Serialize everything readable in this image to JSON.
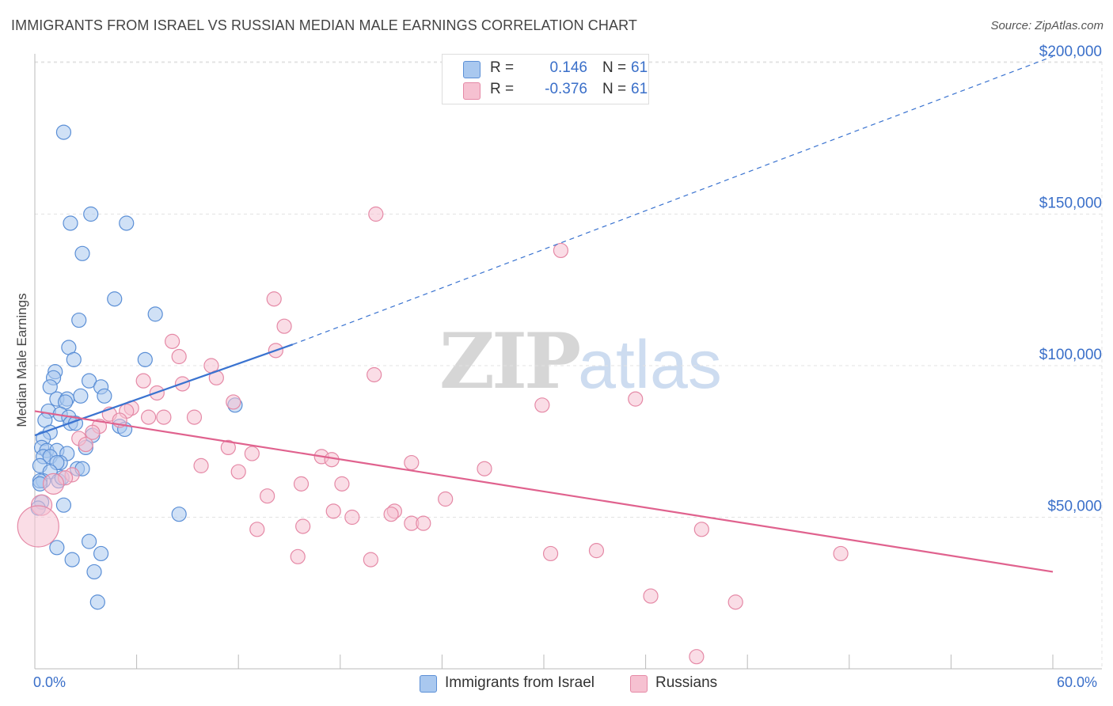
{
  "title": "IMMIGRANTS FROM ISRAEL VS RUSSIAN MEDIAN MALE EARNINGS CORRELATION CHART",
  "source": "Source: ZipAtlas.com",
  "watermark": {
    "part1": "ZIP",
    "part2": "atlas"
  },
  "colors": {
    "israel_fill": "#a9c8ef",
    "israel_stroke": "#5b8fd6",
    "israel_line": "#3a73d0",
    "russian_fill": "#f6c1d1",
    "russian_stroke": "#e589a6",
    "russian_line": "#e0628e",
    "grid": "#e3e3e3",
    "axis_label": "#3a6fc9"
  },
  "legend_top": {
    "rows": [
      {
        "r_label": "R =",
        "r_value": "0.146",
        "n_label": "N =",
        "n_value": "61"
      },
      {
        "r_label": "R =",
        "r_value": "-0.376",
        "n_label": "N =",
        "n_value": "61"
      }
    ]
  },
  "legend_bottom": {
    "israel": "Immigrants from Israel",
    "russians": "Russians"
  },
  "chart_data": {
    "type": "scatter",
    "title": "IMMIGRANTS FROM ISRAEL VS RUSSIAN MEDIAN MALE EARNINGS CORRELATION CHART",
    "xlabel": "",
    "ylabel": "Median Male Earnings",
    "xlim": [
      0,
      60
    ],
    "ylim": [
      0,
      210000
    ],
    "x_tick_labels": {
      "min": "0.0%",
      "max": "60.0%"
    },
    "y_ticks": [
      {
        "value": 50000,
        "label": "$50,000"
      },
      {
        "value": 100000,
        "label": "$100,000"
      },
      {
        "value": 150000,
        "label": "$150,000"
      },
      {
        "value": 200000,
        "label": "$200,000"
      }
    ],
    "grid": true,
    "legend_position": "bottom",
    "series": [
      {
        "name": "Immigrants from Israel",
        "r": 0.146,
        "n": 61,
        "trend": {
          "x0": 0.0,
          "y0": 77000,
          "x1": 15.2,
          "y1": 107000,
          "extend_to_x": 60,
          "extend_y": 202000
        },
        "points": [
          [
            1.7,
            177000
          ],
          [
            3.3,
            150000
          ],
          [
            2.1,
            147000
          ],
          [
            5.4,
            147000
          ],
          [
            2.8,
            137000
          ],
          [
            4.7,
            122000
          ],
          [
            7.1,
            117000
          ],
          [
            2.6,
            115000
          ],
          [
            2.0,
            106000
          ],
          [
            2.3,
            102000
          ],
          [
            6.5,
            102000
          ],
          [
            1.2,
            98000
          ],
          [
            1.1,
            96000
          ],
          [
            3.2,
            95000
          ],
          [
            0.9,
            93000
          ],
          [
            3.9,
            93000
          ],
          [
            1.3,
            89000
          ],
          [
            2.7,
            90000
          ],
          [
            4.1,
            90000
          ],
          [
            1.9,
            89000
          ],
          [
            1.8,
            88000
          ],
          [
            11.8,
            87000
          ],
          [
            0.8,
            85000
          ],
          [
            1.5,
            84000
          ],
          [
            2.0,
            83000
          ],
          [
            0.6,
            82000
          ],
          [
            2.1,
            81000
          ],
          [
            2.4,
            81000
          ],
          [
            5.0,
            80000
          ],
          [
            5.3,
            79000
          ],
          [
            0.9,
            78000
          ],
          [
            3.4,
            77000
          ],
          [
            0.5,
            76000
          ],
          [
            0.4,
            73000
          ],
          [
            0.7,
            72000
          ],
          [
            1.3,
            72000
          ],
          [
            1.9,
            71000
          ],
          [
            3.0,
            73000
          ],
          [
            0.5,
            70000
          ],
          [
            0.9,
            70000
          ],
          [
            1.5,
            68000
          ],
          [
            1.3,
            68000
          ],
          [
            0.3,
            67000
          ],
          [
            2.5,
            66000
          ],
          [
            2.8,
            66000
          ],
          [
            0.9,
            65000
          ],
          [
            0.5,
            62000
          ],
          [
            1.4,
            62000
          ],
          [
            0.3,
            62000
          ],
          [
            1.6,
            63000
          ],
          [
            0.4,
            55000
          ],
          [
            1.7,
            54000
          ],
          [
            0.2,
            53000
          ],
          [
            8.5,
            51000
          ],
          [
            3.2,
            42000
          ],
          [
            1.3,
            40000
          ],
          [
            3.9,
            38000
          ],
          [
            2.2,
            36000
          ],
          [
            3.5,
            32000
          ],
          [
            3.7,
            22000
          ],
          [
            0.3,
            61000
          ]
        ]
      },
      {
        "name": "Russians",
        "r": -0.376,
        "n": 61,
        "trend": {
          "x0": 0.0,
          "y0": 85000,
          "x1": 60,
          "y1": 32000
        },
        "points": [
          [
            20.1,
            150000
          ],
          [
            31.0,
            138000
          ],
          [
            14.1,
            122000
          ],
          [
            14.7,
            113000
          ],
          [
            8.1,
            108000
          ],
          [
            14.2,
            105000
          ],
          [
            8.5,
            103000
          ],
          [
            10.4,
            100000
          ],
          [
            20.0,
            97000
          ],
          [
            10.7,
            96000
          ],
          [
            6.4,
            95000
          ],
          [
            8.7,
            94000
          ],
          [
            7.2,
            91000
          ],
          [
            35.4,
            89000
          ],
          [
            11.7,
            88000
          ],
          [
            29.9,
            87000
          ],
          [
            5.7,
            86000
          ],
          [
            5.4,
            85000
          ],
          [
            4.4,
            84000
          ],
          [
            6.7,
            83000
          ],
          [
            7.6,
            83000
          ],
          [
            9.4,
            83000
          ],
          [
            5.0,
            82000
          ],
          [
            3.8,
            80000
          ],
          [
            3.4,
            78000
          ],
          [
            2.6,
            76000
          ],
          [
            3.0,
            74000
          ],
          [
            11.4,
            73000
          ],
          [
            12.8,
            71000
          ],
          [
            16.9,
            70000
          ],
          [
            17.5,
            69000
          ],
          [
            22.2,
            68000
          ],
          [
            9.8,
            67000
          ],
          [
            26.5,
            66000
          ],
          [
            12.0,
            65000
          ],
          [
            2.2,
            64000
          ],
          [
            1.8,
            63000
          ],
          [
            15.7,
            61000
          ],
          [
            18.1,
            61000
          ],
          [
            13.7,
            57000
          ],
          [
            24.2,
            56000
          ],
          [
            17.6,
            52000
          ],
          [
            21.2,
            52000
          ],
          [
            21.0,
            51000
          ],
          [
            18.7,
            50000
          ],
          [
            22.2,
            48000
          ],
          [
            22.9,
            48000
          ],
          [
            15.8,
            47000
          ],
          [
            13.1,
            46000
          ],
          [
            39.3,
            46000
          ],
          [
            33.1,
            39000
          ],
          [
            30.4,
            38000
          ],
          [
            47.5,
            38000
          ],
          [
            15.5,
            37000
          ],
          [
            19.8,
            36000
          ],
          [
            36.3,
            24000
          ],
          [
            41.3,
            22000
          ],
          [
            39.0,
            4000
          ],
          [
            1.1,
            61000
          ],
          [
            0.4,
            54000
          ],
          [
            0.2,
            47000
          ]
        ]
      }
    ]
  }
}
